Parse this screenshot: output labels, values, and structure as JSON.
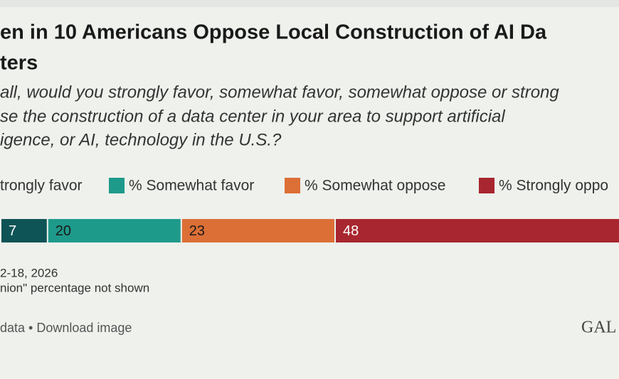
{
  "chart_data": {
    "type": "bar",
    "stacked": true,
    "orientation": "horizontal",
    "title": [
      "en in 10 Americans Oppose Local Construction of AI Da",
      "ters"
    ],
    "subtitle": [
      "all, would you strongly favor, somewhat favor, somewhat oppose or strong",
      "se the construction of a data center in your area to support artificial",
      "igence, or AI, technology in the U.S.?"
    ],
    "series": [
      {
        "name": "trongly favor",
        "color": "#0e5456",
        "label_color": "#ffffff",
        "values": [
          7
        ]
      },
      {
        "name": "% Somewhat favor",
        "color": "#1e9a8b",
        "label_color": "#1a1a1a",
        "values": [
          20
        ]
      },
      {
        "name": "% Somewhat oppose",
        "color": "#dc6f36",
        "label_color": "#1a1a1a",
        "values": [
          23
        ]
      },
      {
        "name": "% Strongly oppo",
        "color": "#a8262f",
        "label_color": "#ffffff",
        "values": [
          48
        ]
      }
    ],
    "notes": [
      "2-18, 2026",
      "nion\" percentage not shown"
    ],
    "links": "data • Download image",
    "logo": "GAL"
  }
}
